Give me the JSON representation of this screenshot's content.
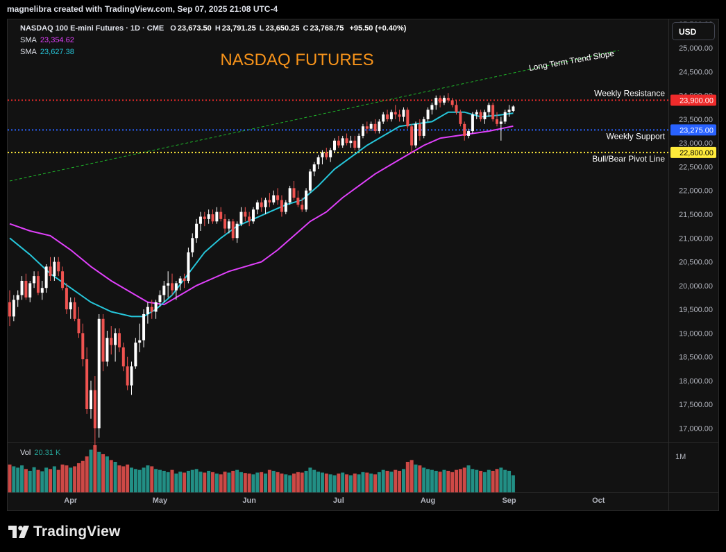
{
  "caption": "magnelibra created with TradingView.com, Sep 07, 2025 21:08 UTC-4",
  "legend": {
    "symbol": "NASDAQ 100 E-mini Futures · 1D · CME",
    "open_label": "O",
    "open": "23,673.50",
    "high_label": "H",
    "high": "23,791.25",
    "low_label": "L",
    "low": "23,650.25",
    "close_label": "C",
    "close": "23,768.75",
    "change": "+95.50 (+0.40%)",
    "sma1_label": "SMA",
    "sma1_value": "23,354.62",
    "sma2_label": "SMA",
    "sma2_value": "23,627.38",
    "vol_label": "Vol",
    "vol_value": "20.31 K"
  },
  "currency": "USD",
  "footer": {
    "brand": "TradingView"
  },
  "colors": {
    "up": "#ffffff",
    "down": "#ef5350",
    "sma_fast": "#26c6da",
    "sma_slow": "#e040fb",
    "resistance": "#ef2b2b",
    "support": "#2962ff",
    "pivot": "#ffeb3b",
    "trend": "#1fb82a",
    "title": "#f7931a",
    "vol_up": "#26a69a",
    "vol_down": "#ef5350"
  },
  "chart_data": {
    "type": "candlestick",
    "title": "NASDAQ FUTURES",
    "ylim": [
      16700,
      25600
    ],
    "y_ticks": [
      "17,000.00",
      "17,500.00",
      "18,000.00",
      "18,500.00",
      "19,000.00",
      "19,500.00",
      "20,000.00",
      "20,500.00",
      "21,000.00",
      "21,500.00",
      "22,000.00",
      "22,500.00",
      "23,000.00",
      "23,500.00",
      "24,000.00",
      "24,500.00",
      "25,000.00",
      "25,500.00"
    ],
    "x_labels": [
      "Apr",
      "May",
      "Jun",
      "Jul",
      "Aug",
      "Sep",
      "Oct"
    ],
    "candles": [
      {
        "o": 19650,
        "h": 19900,
        "l": 19150,
        "c": 19350
      },
      {
        "o": 19350,
        "h": 19800,
        "l": 19250,
        "c": 19700
      },
      {
        "o": 19700,
        "h": 19900,
        "l": 19550,
        "c": 19800
      },
      {
        "o": 19800,
        "h": 20200,
        "l": 19700,
        "c": 20100
      },
      {
        "o": 20100,
        "h": 20250,
        "l": 19700,
        "c": 19750
      },
      {
        "o": 19750,
        "h": 20100,
        "l": 19650,
        "c": 20050
      },
      {
        "o": 20050,
        "h": 20300,
        "l": 19950,
        "c": 20200
      },
      {
        "o": 20200,
        "h": 20300,
        "l": 19800,
        "c": 19850
      },
      {
        "o": 19850,
        "h": 20100,
        "l": 19700,
        "c": 19950
      },
      {
        "o": 19950,
        "h": 20450,
        "l": 19850,
        "c": 20400
      },
      {
        "o": 20400,
        "h": 20600,
        "l": 20100,
        "c": 20200
      },
      {
        "o": 20200,
        "h": 20600,
        "l": 20100,
        "c": 20500
      },
      {
        "o": 20500,
        "h": 20600,
        "l": 20200,
        "c": 20300
      },
      {
        "o": 20300,
        "h": 20400,
        "l": 19900,
        "c": 19950
      },
      {
        "o": 19950,
        "h": 20050,
        "l": 19400,
        "c": 19500
      },
      {
        "o": 19500,
        "h": 19750,
        "l": 19300,
        "c": 19650
      },
      {
        "o": 19650,
        "h": 19750,
        "l": 19250,
        "c": 19300
      },
      {
        "o": 19300,
        "h": 19550,
        "l": 18900,
        "c": 19000
      },
      {
        "o": 19000,
        "h": 19200,
        "l": 18300,
        "c": 18450
      },
      {
        "o": 18450,
        "h": 18700,
        "l": 17300,
        "c": 17400
      },
      {
        "o": 17400,
        "h": 18000,
        "l": 17200,
        "c": 17800
      },
      {
        "o": 17800,
        "h": 18100,
        "l": 16600,
        "c": 17000
      },
      {
        "o": 17000,
        "h": 19400,
        "l": 16800,
        "c": 19300
      },
      {
        "o": 19300,
        "h": 19400,
        "l": 18200,
        "c": 18400
      },
      {
        "o": 18400,
        "h": 19050,
        "l": 18300,
        "c": 18900
      },
      {
        "o": 18900,
        "h": 19150,
        "l": 18550,
        "c": 18750
      },
      {
        "o": 18750,
        "h": 19100,
        "l": 18400,
        "c": 19000
      },
      {
        "o": 19000,
        "h": 19100,
        "l": 18600,
        "c": 18700
      },
      {
        "o": 18700,
        "h": 18800,
        "l": 18200,
        "c": 18300
      },
      {
        "o": 18300,
        "h": 18500,
        "l": 17800,
        "c": 17900
      },
      {
        "o": 17900,
        "h": 18400,
        "l": 17700,
        "c": 18300
      },
      {
        "o": 18300,
        "h": 18900,
        "l": 18250,
        "c": 18800
      },
      {
        "o": 18800,
        "h": 19200,
        "l": 18600,
        "c": 18850
      },
      {
        "o": 18850,
        "h": 19500,
        "l": 18700,
        "c": 19400
      },
      {
        "o": 19400,
        "h": 19650,
        "l": 19200,
        "c": 19550
      },
      {
        "o": 19550,
        "h": 19700,
        "l": 19300,
        "c": 19450
      },
      {
        "o": 19450,
        "h": 19700,
        "l": 19300,
        "c": 19650
      },
      {
        "o": 19650,
        "h": 19900,
        "l": 19550,
        "c": 19800
      },
      {
        "o": 19800,
        "h": 20100,
        "l": 19650,
        "c": 20000
      },
      {
        "o": 20000,
        "h": 20300,
        "l": 19750,
        "c": 20050
      },
      {
        "o": 20050,
        "h": 20250,
        "l": 19800,
        "c": 19900
      },
      {
        "o": 19900,
        "h": 20100,
        "l": 19700,
        "c": 20050
      },
      {
        "o": 20050,
        "h": 20200,
        "l": 19900,
        "c": 20150
      },
      {
        "o": 20150,
        "h": 20250,
        "l": 19950,
        "c": 20100
      },
      {
        "o": 20100,
        "h": 20800,
        "l": 20050,
        "c": 20700
      },
      {
        "o": 20700,
        "h": 21100,
        "l": 20600,
        "c": 21000
      },
      {
        "o": 21000,
        "h": 21400,
        "l": 20900,
        "c": 21300
      },
      {
        "o": 21300,
        "h": 21550,
        "l": 21150,
        "c": 21450
      },
      {
        "o": 21450,
        "h": 21550,
        "l": 21250,
        "c": 21400
      },
      {
        "o": 21400,
        "h": 21600,
        "l": 21300,
        "c": 21500
      },
      {
        "o": 21500,
        "h": 21600,
        "l": 21300,
        "c": 21350
      },
      {
        "o": 21350,
        "h": 21650,
        "l": 21300,
        "c": 21550
      },
      {
        "o": 21550,
        "h": 21650,
        "l": 21350,
        "c": 21400
      },
      {
        "o": 21400,
        "h": 21500,
        "l": 21100,
        "c": 21200
      },
      {
        "o": 21200,
        "h": 21400,
        "l": 21100,
        "c": 21350
      },
      {
        "o": 21350,
        "h": 21400,
        "l": 20950,
        "c": 21000
      },
      {
        "o": 21000,
        "h": 21350,
        "l": 20900,
        "c": 21300
      },
      {
        "o": 21300,
        "h": 21650,
        "l": 21250,
        "c": 21550
      },
      {
        "o": 21550,
        "h": 21650,
        "l": 21350,
        "c": 21450
      },
      {
        "o": 21450,
        "h": 21550,
        "l": 21250,
        "c": 21350
      },
      {
        "o": 21350,
        "h": 21650,
        "l": 21300,
        "c": 21600
      },
      {
        "o": 21600,
        "h": 21800,
        "l": 21500,
        "c": 21750
      },
      {
        "o": 21750,
        "h": 21850,
        "l": 21550,
        "c": 21650
      },
      {
        "o": 21650,
        "h": 21850,
        "l": 21500,
        "c": 21800
      },
      {
        "o": 21800,
        "h": 21950,
        "l": 21650,
        "c": 21750
      },
      {
        "o": 21750,
        "h": 22000,
        "l": 21700,
        "c": 21900
      },
      {
        "o": 21900,
        "h": 22050,
        "l": 21700,
        "c": 21800
      },
      {
        "o": 21800,
        "h": 21900,
        "l": 21450,
        "c": 21550
      },
      {
        "o": 21550,
        "h": 21800,
        "l": 21500,
        "c": 21750
      },
      {
        "o": 21750,
        "h": 22100,
        "l": 21700,
        "c": 22050
      },
      {
        "o": 22050,
        "h": 22200,
        "l": 21800,
        "c": 21850
      },
      {
        "o": 21850,
        "h": 22000,
        "l": 21650,
        "c": 21700
      },
      {
        "o": 21700,
        "h": 21850,
        "l": 21550,
        "c": 21600
      },
      {
        "o": 21600,
        "h": 22050,
        "l": 21550,
        "c": 22000
      },
      {
        "o": 22000,
        "h": 22450,
        "l": 21950,
        "c": 22400
      },
      {
        "o": 22400,
        "h": 22600,
        "l": 22300,
        "c": 22550
      },
      {
        "o": 22550,
        "h": 22750,
        "l": 22450,
        "c": 22700
      },
      {
        "o": 22700,
        "h": 22850,
        "l": 22550,
        "c": 22800
      },
      {
        "o": 22800,
        "h": 22900,
        "l": 22650,
        "c": 22700
      },
      {
        "o": 22700,
        "h": 22900,
        "l": 22600,
        "c": 22850
      },
      {
        "o": 22850,
        "h": 23100,
        "l": 22800,
        "c": 23050
      },
      {
        "o": 23050,
        "h": 23150,
        "l": 22900,
        "c": 22950
      },
      {
        "o": 22950,
        "h": 23150,
        "l": 22900,
        "c": 23100
      },
      {
        "o": 23100,
        "h": 23200,
        "l": 22950,
        "c": 23000
      },
      {
        "o": 23000,
        "h": 23150,
        "l": 22900,
        "c": 23050
      },
      {
        "o": 23050,
        "h": 23150,
        "l": 22850,
        "c": 22900
      },
      {
        "o": 22900,
        "h": 23200,
        "l": 22850,
        "c": 23150
      },
      {
        "o": 23150,
        "h": 23400,
        "l": 23100,
        "c": 23350
      },
      {
        "o": 23350,
        "h": 23450,
        "l": 23200,
        "c": 23300
      },
      {
        "o": 23300,
        "h": 23450,
        "l": 23250,
        "c": 23400
      },
      {
        "o": 23400,
        "h": 23500,
        "l": 23200,
        "c": 23250
      },
      {
        "o": 23250,
        "h": 23500,
        "l": 23200,
        "c": 23450
      },
      {
        "o": 23450,
        "h": 23650,
        "l": 23400,
        "c": 23600
      },
      {
        "o": 23600,
        "h": 23700,
        "l": 23450,
        "c": 23500
      },
      {
        "o": 23500,
        "h": 23700,
        "l": 23450,
        "c": 23650
      },
      {
        "o": 23650,
        "h": 23800,
        "l": 23500,
        "c": 23600
      },
      {
        "o": 23600,
        "h": 23700,
        "l": 23450,
        "c": 23550
      },
      {
        "o": 23550,
        "h": 23750,
        "l": 23450,
        "c": 23700
      },
      {
        "o": 23700,
        "h": 23750,
        "l": 23300,
        "c": 23350
      },
      {
        "o": 23350,
        "h": 23400,
        "l": 22800,
        "c": 22950
      },
      {
        "o": 22950,
        "h": 23450,
        "l": 22900,
        "c": 23400
      },
      {
        "o": 23400,
        "h": 23500,
        "l": 23050,
        "c": 23150
      },
      {
        "o": 23150,
        "h": 23550,
        "l": 23100,
        "c": 23500
      },
      {
        "o": 23500,
        "h": 23750,
        "l": 23450,
        "c": 23700
      },
      {
        "o": 23700,
        "h": 23850,
        "l": 23600,
        "c": 23800
      },
      {
        "o": 23800,
        "h": 24000,
        "l": 23700,
        "c": 23950
      },
      {
        "o": 23950,
        "h": 24000,
        "l": 23750,
        "c": 23850
      },
      {
        "o": 23850,
        "h": 24000,
        "l": 23800,
        "c": 23950
      },
      {
        "o": 23950,
        "h": 24050,
        "l": 23850,
        "c": 23900
      },
      {
        "o": 23900,
        "h": 23950,
        "l": 23750,
        "c": 23800
      },
      {
        "o": 23800,
        "h": 23900,
        "l": 23600,
        "c": 23650
      },
      {
        "o": 23650,
        "h": 23700,
        "l": 23350,
        "c": 23400
      },
      {
        "o": 23400,
        "h": 23450,
        "l": 23050,
        "c": 23150
      },
      {
        "o": 23150,
        "h": 23300,
        "l": 23100,
        "c": 23250
      },
      {
        "o": 23250,
        "h": 23650,
        "l": 23200,
        "c": 23600
      },
      {
        "o": 23600,
        "h": 23700,
        "l": 23500,
        "c": 23650
      },
      {
        "o": 23650,
        "h": 23700,
        "l": 23450,
        "c": 23500
      },
      {
        "o": 23500,
        "h": 23700,
        "l": 23400,
        "c": 23650
      },
      {
        "o": 23650,
        "h": 23850,
        "l": 23550,
        "c": 23800
      },
      {
        "o": 23800,
        "h": 23850,
        "l": 23450,
        "c": 23500
      },
      {
        "o": 23500,
        "h": 23650,
        "l": 23350,
        "c": 23400
      },
      {
        "o": 23400,
        "h": 23550,
        "l": 23050,
        "c": 23450
      },
      {
        "o": 23450,
        "h": 23700,
        "l": 23400,
        "c": 23650
      },
      {
        "o": 23650,
        "h": 23800,
        "l": 23550,
        "c": 23700
      },
      {
        "o": 23673.5,
        "h": 23791.25,
        "l": 23650.25,
        "c": 23768.75
      }
    ],
    "volume": [
      0.62,
      0.58,
      0.55,
      0.6,
      0.52,
      0.48,
      0.56,
      0.5,
      0.47,
      0.55,
      0.52,
      0.58,
      0.5,
      0.62,
      0.6,
      0.55,
      0.58,
      0.65,
      0.7,
      0.8,
      0.95,
      1.05,
      0.9,
      0.85,
      0.8,
      0.72,
      0.68,
      0.6,
      0.58,
      0.62,
      0.55,
      0.52,
      0.5,
      0.55,
      0.6,
      0.58,
      0.52,
      0.5,
      0.48,
      0.45,
      0.5,
      0.42,
      0.46,
      0.44,
      0.48,
      0.5,
      0.52,
      0.46,
      0.44,
      0.48,
      0.45,
      0.42,
      0.4,
      0.46,
      0.44,
      0.48,
      0.5,
      0.45,
      0.43,
      0.42,
      0.4,
      0.44,
      0.45,
      0.42,
      0.5,
      0.48,
      0.45,
      0.42,
      0.4,
      0.38,
      0.42,
      0.45,
      0.44,
      0.48,
      0.55,
      0.5,
      0.46,
      0.44,
      0.42,
      0.4,
      0.38,
      0.42,
      0.44,
      0.4,
      0.38,
      0.42,
      0.4,
      0.45,
      0.44,
      0.42,
      0.4,
      0.45,
      0.5,
      0.48,
      0.46,
      0.5,
      0.48,
      0.52,
      0.68,
      0.72,
      0.62,
      0.6,
      0.55,
      0.52,
      0.5,
      0.48,
      0.46,
      0.5,
      0.48,
      0.45,
      0.5,
      0.52,
      0.55,
      0.6,
      0.52,
      0.5,
      0.48,
      0.45,
      0.5,
      0.48,
      0.52,
      0.55,
      0.5,
      0.48,
      0.38
    ],
    "sma_fast": [
      [
        0,
        21000
      ],
      [
        5,
        20650
      ],
      [
        10,
        20250
      ],
      [
        15,
        19950
      ],
      [
        20,
        19650
      ],
      [
        25,
        19450
      ],
      [
        30,
        19350
      ],
      [
        33,
        19350
      ],
      [
        36,
        19500
      ],
      [
        40,
        19800
      ],
      [
        44,
        20250
      ],
      [
        48,
        20700
      ],
      [
        52,
        21000
      ],
      [
        56,
        21250
      ],
      [
        60,
        21400
      ],
      [
        64,
        21550
      ],
      [
        68,
        21700
      ],
      [
        72,
        21800
      ],
      [
        76,
        22100
      ],
      [
        80,
        22450
      ],
      [
        84,
        22700
      ],
      [
        88,
        22950
      ],
      [
        92,
        23150
      ],
      [
        96,
        23350
      ],
      [
        100,
        23400
      ],
      [
        104,
        23450
      ],
      [
        108,
        23650
      ],
      [
        112,
        23650
      ],
      [
        116,
        23550
      ],
      [
        120,
        23580
      ],
      [
        124,
        23627
      ]
    ],
    "sma_slow": [
      [
        0,
        21300
      ],
      [
        5,
        21150
      ],
      [
        10,
        21050
      ],
      [
        15,
        20750
      ],
      [
        20,
        20400
      ],
      [
        25,
        20100
      ],
      [
        30,
        19850
      ],
      [
        34,
        19650
      ],
      [
        38,
        19600
      ],
      [
        42,
        19800
      ],
      [
        46,
        20000
      ],
      [
        50,
        20150
      ],
      [
        54,
        20300
      ],
      [
        58,
        20400
      ],
      [
        62,
        20500
      ],
      [
        66,
        20750
      ],
      [
        70,
        21050
      ],
      [
        74,
        21350
      ],
      [
        78,
        21550
      ],
      [
        82,
        21850
      ],
      [
        86,
        22100
      ],
      [
        90,
        22350
      ],
      [
        94,
        22550
      ],
      [
        98,
        22750
      ],
      [
        102,
        22950
      ],
      [
        106,
        23100
      ],
      [
        110,
        23150
      ],
      [
        114,
        23200
      ],
      [
        118,
        23250
      ],
      [
        122,
        23320
      ],
      [
        124,
        23354
      ]
    ],
    "levels": [
      {
        "name": "Weekly Resistance",
        "value": 23900,
        "label": "23,900.00"
      },
      {
        "name": "Weekly Support",
        "value": 23275,
        "label": "23,275.00"
      },
      {
        "name": "Bull/Bear Pivot Line",
        "value": 22800,
        "label": "22,800.00"
      }
    ],
    "trend": {
      "name": "Long Term Trend Slope",
      "from": [
        0,
        22200
      ],
      "to": [
        150,
        24950
      ]
    },
    "volume_scale_label": "1M"
  }
}
